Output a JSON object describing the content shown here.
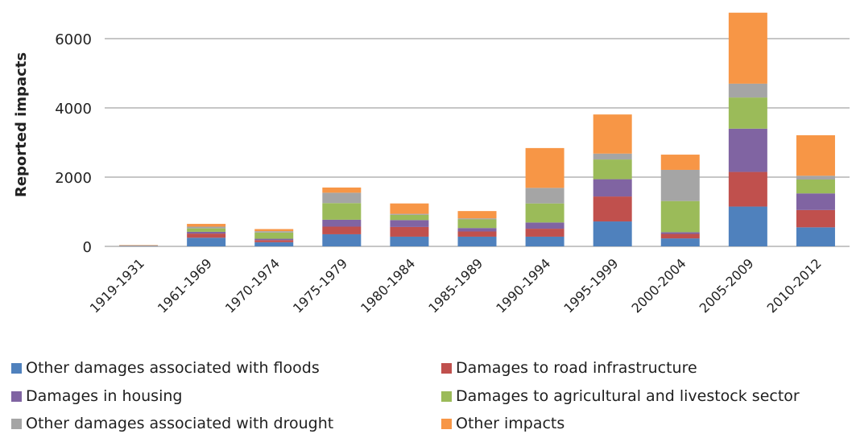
{
  "chart_data": {
    "type": "bar",
    "stacked": true,
    "title": "",
    "xlabel": "",
    "ylabel": "Reported impacts",
    "ylim": [
      0,
      6000
    ],
    "yticks": [
      0,
      2000,
      4000,
      6000
    ],
    "grid": true,
    "legend_position": "bottom",
    "categories": [
      "1919-1931",
      "1961-1969",
      "1970-1974",
      "1975-1979",
      "1980-1984",
      "1985-1989",
      "1990-1994",
      "1995-1999",
      "2000-2004",
      "2005-2009",
      "2010-2012"
    ],
    "series": [
      {
        "name": "Other damages associated with floods",
        "color": "#4f81bd",
        "values": [
          10,
          250,
          120,
          350,
          280,
          280,
          280,
          720,
          230,
          1150,
          550
        ]
      },
      {
        "name": "Damages to road infrastructure",
        "color": "#c0504d",
        "values": [
          5,
          120,
          60,
          220,
          280,
          150,
          230,
          720,
          130,
          1000,
          500
        ]
      },
      {
        "name": "Damages in housing",
        "color": "#8064a2",
        "values": [
          5,
          50,
          40,
          200,
          200,
          100,
          180,
          500,
          50,
          1250,
          480
        ]
      },
      {
        "name": "Damages to agricultural and livestock sector",
        "color": "#9bbb59",
        "values": [
          5,
          100,
          180,
          480,
          150,
          250,
          550,
          570,
          900,
          900,
          400
        ]
      },
      {
        "name": "Other damages associated with drought",
        "color": "#a5a5a5",
        "values": [
          5,
          50,
          40,
          300,
          30,
          30,
          450,
          170,
          900,
          400,
          110
        ]
      },
      {
        "name": "Other impacts",
        "color": "#f79646",
        "values": [
          10,
          80,
          60,
          150,
          300,
          210,
          1150,
          1130,
          440,
          2050,
          1170
        ]
      }
    ]
  }
}
